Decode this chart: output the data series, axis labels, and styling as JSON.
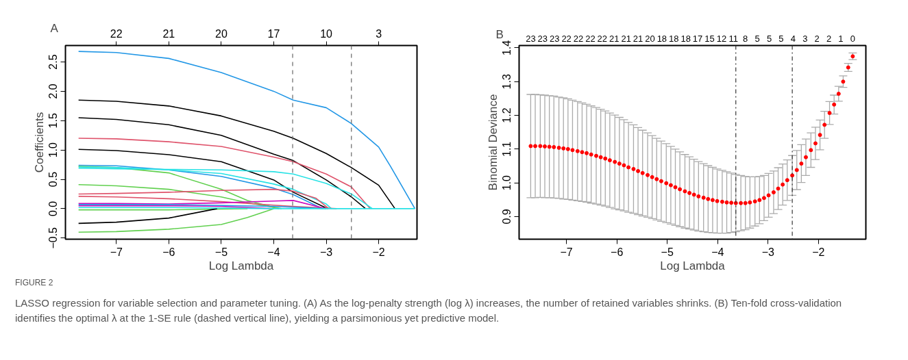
{
  "chart_data": [
    {
      "type": "line",
      "title": "A",
      "xlabel": "Log Lambda",
      "ylabel": "Coefficients",
      "xlim": [
        -7.97,
        -1.27
      ],
      "ylim": [
        -0.52,
        2.78
      ],
      "xticks": [
        {
          "value": -7,
          "label": "−7"
        },
        {
          "value": -6,
          "label": "−6"
        },
        {
          "value": -5,
          "label": "−5"
        },
        {
          "value": -4,
          "label": "−4"
        },
        {
          "value": -3,
          "label": "−3"
        },
        {
          "value": -2,
          "label": "−2"
        }
      ],
      "yticks": [
        {
          "value": -0.5,
          "label": "−0.5"
        },
        {
          "value": 0,
          "label": "0.0"
        },
        {
          "value": 0.5,
          "label": "0.5"
        },
        {
          "value": 1,
          "label": "1.0"
        },
        {
          "value": 1.5,
          "label": "1.5"
        },
        {
          "value": 2,
          "label": "2.0"
        },
        {
          "value": 2.5,
          "label": "2.5"
        }
      ],
      "grid": false,
      "line_style": "solid",
      "ref_lines": [
        {
          "axis": "x",
          "value": -3.64,
          "color": "#666666",
          "line_style": "dashed"
        },
        {
          "axis": "x",
          "value": -2.52,
          "color": "#666666",
          "line_style": "dashed"
        }
      ],
      "annotations": [
        {
          "text": "22",
          "x": -7
        },
        {
          "text": "21",
          "x": -6
        },
        {
          "text": "20",
          "x": -5
        },
        {
          "text": "17",
          "x": -4
        },
        {
          "text": "10",
          "x": -3
        },
        {
          "text": "3",
          "x": -2
        },
        "FIGURE 2",
        "LASSO regression for variable selection and parameter tuning. (A) As the log-penalty strength (log λ) increases, the number of retained variables shrinks. (B) Ten-fold cross-validation identifies the optimal λ at the 1-SE rule (dashed vertical line), yielding a parsimonious yet predictive model."
      ],
      "series": [
        {
          "color": "#2297e6",
          "x": [
            -7.72,
            -7,
            -6,
            -5,
            -4,
            -3.63,
            -3,
            -2.52,
            -2,
            -1.78,
            -1.31
          ],
          "values": [
            2.68,
            2.66,
            2.56,
            2.32,
            2.0,
            1.85,
            1.72,
            1.45,
            1.05,
            0.73,
            0
          ]
        },
        {
          "color": "#000000",
          "x": [
            -7.72,
            -7,
            -6,
            -5,
            -4,
            -3.63,
            -3,
            -2.52,
            -2,
            -1.69
          ],
          "values": [
            1.85,
            1.83,
            1.75,
            1.58,
            1.32,
            1.2,
            0.94,
            0.7,
            0.4,
            0
          ]
        },
        {
          "color": "#000000",
          "x": [
            -7.72,
            -7,
            -6,
            -5,
            -4,
            -3.63,
            -3,
            -2.52,
            -2.25
          ],
          "values": [
            1.55,
            1.52,
            1.43,
            1.25,
            0.93,
            0.82,
            0.49,
            0.2,
            0
          ]
        },
        {
          "color": "#df536b",
          "x": [
            -7.72,
            -7,
            -6,
            -5,
            -4,
            -3.63,
            -3,
            -2.52,
            -2.16
          ],
          "values": [
            1.2,
            1.19,
            1.14,
            1.06,
            0.88,
            0.8,
            0.59,
            0.37,
            0
          ]
        },
        {
          "color": "#000000",
          "x": [
            -7.72,
            -7,
            -6,
            -5,
            -4,
            -3.63,
            -2.97
          ],
          "values": [
            1.01,
            0.99,
            0.92,
            0.8,
            0.49,
            0.28,
            0
          ]
        },
        {
          "color": "#2297e6",
          "x": [
            -7.72,
            -7,
            -6,
            -5,
            -4,
            -3.63,
            -3.07
          ],
          "values": [
            0.74,
            0.73,
            0.66,
            0.55,
            0.35,
            0.24,
            0
          ]
        },
        {
          "color": "#61d04f",
          "x": [
            -7.72,
            -7,
            -6,
            -5,
            -4.5,
            -3.9
          ],
          "values": [
            0.72,
            0.7,
            0.61,
            0.33,
            0.14,
            0
          ]
        },
        {
          "color": "#28e2e5",
          "x": [
            -7.72,
            -7,
            -6,
            -5,
            -4,
            -3.63,
            -3,
            -2.52,
            -2.12
          ],
          "values": [
            0.69,
            0.68,
            0.67,
            0.66,
            0.63,
            0.59,
            0.43,
            0.25,
            0
          ]
        },
        {
          "color": "#28e2e5",
          "x": [
            -7.72,
            -7,
            -6,
            -5,
            -4,
            -3.63,
            -3,
            -2.9
          ],
          "values": [
            0.71,
            0.7,
            0.66,
            0.6,
            0.42,
            0.33,
            0.08,
            0
          ]
        },
        {
          "color": "#61d04f",
          "x": [
            -7.72,
            -7,
            -6,
            -5,
            -4.5,
            -3.85
          ],
          "values": [
            0.41,
            0.39,
            0.33,
            0.2,
            0.1,
            0
          ]
        },
        {
          "color": "#df536b",
          "x": [
            -7.72,
            -7,
            -6,
            -5,
            -4,
            -3.63,
            -3.2,
            -2.95
          ],
          "values": [
            0.25,
            0.26,
            0.28,
            0.31,
            0.33,
            0.3,
            0.18,
            0
          ]
        },
        {
          "color": "#df536b",
          "x": [
            -7.72,
            -7,
            -6,
            -5,
            -4,
            -3.63,
            -2.8
          ],
          "values": [
            0.21,
            0.2,
            0.17,
            0.12,
            0.06,
            0.04,
            0
          ]
        },
        {
          "color": "#cd0bbc",
          "x": [
            -7.72,
            -7,
            -6,
            -5,
            -4,
            -3.63,
            -3.0
          ],
          "values": [
            0.09,
            0.09,
            0.08,
            0.1,
            0.13,
            0.14,
            0
          ]
        },
        {
          "color": "#cd0bbc",
          "x": [
            -7.72,
            -6,
            -5,
            -4
          ],
          "values": [
            0.05,
            0.05,
            0.04,
            0
          ]
        },
        {
          "color": "#2297e6",
          "x": [
            -7.72,
            -6,
            -4,
            -3
          ],
          "values": [
            0.07,
            0.07,
            0.04,
            0
          ]
        },
        {
          "color": "#61d04f",
          "x": [
            -7.72,
            -6,
            -4.5
          ],
          "values": [
            -0.02,
            -0.02,
            0
          ]
        },
        {
          "color": "#000000",
          "x": [
            -7.72,
            -7,
            -6,
            -5.08
          ],
          "values": [
            -0.25,
            -0.23,
            -0.16,
            0
          ]
        },
        {
          "color": "#61d04f",
          "x": [
            -7.72,
            -7,
            -6,
            -5,
            -4.5,
            -4.0
          ],
          "values": [
            -0.4,
            -0.39,
            -0.35,
            -0.27,
            -0.15,
            0
          ]
        },
        {
          "color": "#28e2e5",
          "x": [
            -7.72,
            -6,
            -4,
            -1.31
          ],
          "values": [
            0.02,
            0.02,
            0,
            0
          ]
        }
      ]
    },
    {
      "type": "scatter",
      "title": "B",
      "xlabel": "Log Lambda",
      "ylabel": "Binomial Deviance",
      "xlim": [
        -7.94,
        -1.06
      ],
      "ylim": [
        0.833,
        1.407
      ],
      "xticks": [
        {
          "value": -7,
          "label": "−7"
        },
        {
          "value": -6,
          "label": "−6"
        },
        {
          "value": -5,
          "label": "−5"
        },
        {
          "value": -4,
          "label": "−4"
        },
        {
          "value": -3,
          "label": "−3"
        },
        {
          "value": -2,
          "label": "−2"
        }
      ],
      "yticks": [
        {
          "value": 0.9,
          "label": "0.9"
        },
        {
          "value": 1.0,
          "label": "1.0"
        },
        {
          "value": 1.1,
          "label": "1.1"
        },
        {
          "value": 1.2,
          "label": "1.2"
        },
        {
          "value": 1.3,
          "label": "1.3"
        },
        {
          "value": 1.4,
          "label": "1.4"
        }
      ],
      "annotations": [
        "23",
        "23",
        "23",
        "22",
        "22",
        "22",
        "22",
        "21",
        "21",
        "21",
        "20",
        "18",
        "18",
        "18",
        "17",
        "15",
        "12",
        "11",
        "8",
        "5",
        "5",
        "5",
        "4",
        "3",
        "2",
        "2",
        "1",
        "0"
      ],
      "grid": false,
      "marker": "circle",
      "ref_lines": [
        {
          "axis": "x",
          "value": -3.64,
          "color": "#333333",
          "line_style": "dashdot"
        },
        {
          "axis": "x",
          "value": -2.52,
          "color": "#333333",
          "line_style": "dashdot"
        }
      ],
      "series": [
        {
          "color": "#ff0000",
          "x": [
            -7.71,
            -7.62,
            -7.52,
            -7.43,
            -7.34,
            -7.25,
            -7.15,
            -7.06,
            -6.97,
            -6.88,
            -6.78,
            -6.69,
            -6.6,
            -6.51,
            -6.41,
            -6.32,
            -6.23,
            -6.14,
            -6.04,
            -5.95,
            -5.86,
            -5.77,
            -5.67,
            -5.58,
            -5.49,
            -5.39,
            -5.3,
            -5.21,
            -5.12,
            -5.02,
            -4.93,
            -4.84,
            -4.75,
            -4.65,
            -4.56,
            -4.47,
            -4.38,
            -4.28,
            -4.19,
            -4.1,
            -4.01,
            -3.91,
            -3.82,
            -3.73,
            -3.64,
            -3.54,
            -3.45,
            -3.36,
            -3.26,
            -3.17,
            -3.08,
            -2.99,
            -2.89,
            -2.8,
            -2.71,
            -2.62,
            -2.52,
            -2.43,
            -2.34,
            -2.25,
            -2.15,
            -2.06,
            -1.97,
            -1.88,
            -1.78,
            -1.69,
            -1.6,
            -1.51,
            -1.41,
            -1.32
          ],
          "values": [
            1.109,
            1.109,
            1.109,
            1.108,
            1.107,
            1.106,
            1.104,
            1.102,
            1.1,
            1.097,
            1.094,
            1.091,
            1.088,
            1.084,
            1.08,
            1.076,
            1.072,
            1.067,
            1.062,
            1.057,
            1.052,
            1.046,
            1.041,
            1.035,
            1.029,
            1.023,
            1.017,
            1.011,
            1.005,
            0.999,
            0.993,
            0.987,
            0.981,
            0.975,
            0.97,
            0.965,
            0.96,
            0.956,
            0.952,
            0.949,
            0.946,
            0.944,
            0.942,
            0.941,
            0.94,
            0.94,
            0.94,
            0.942,
            0.945,
            0.949,
            0.955,
            0.963,
            0.972,
            0.983,
            0.995,
            1.008,
            1.022,
            1.038,
            1.057,
            1.076,
            1.097,
            1.117,
            1.142,
            1.172,
            1.207,
            1.232,
            1.264,
            1.3,
            1.342,
            1.375
          ],
          "errors": [
            0.153,
            0.153,
            0.152,
            0.152,
            0.151,
            0.151,
            0.15,
            0.15,
            0.149,
            0.148,
            0.147,
            0.146,
            0.145,
            0.144,
            0.143,
            0.142,
            0.141,
            0.14,
            0.139,
            0.137,
            0.135,
            0.133,
            0.131,
            0.129,
            0.127,
            0.125,
            0.123,
            0.121,
            0.119,
            0.117,
            0.115,
            0.113,
            0.111,
            0.109,
            0.107,
            0.105,
            0.103,
            0.101,
            0.099,
            0.097,
            0.095,
            0.093,
            0.091,
            0.088,
            0.085,
            0.082,
            0.079,
            0.076,
            0.073,
            0.07,
            0.067,
            0.065,
            0.063,
            0.062,
            0.061,
            0.06,
            0.059,
            0.058,
            0.056,
            0.054,
            0.051,
            0.048,
            0.044,
            0.04,
            0.034,
            0.028,
            0.022,
            0.017,
            0.012,
            0.01
          ]
        }
      ]
    }
  ]
}
